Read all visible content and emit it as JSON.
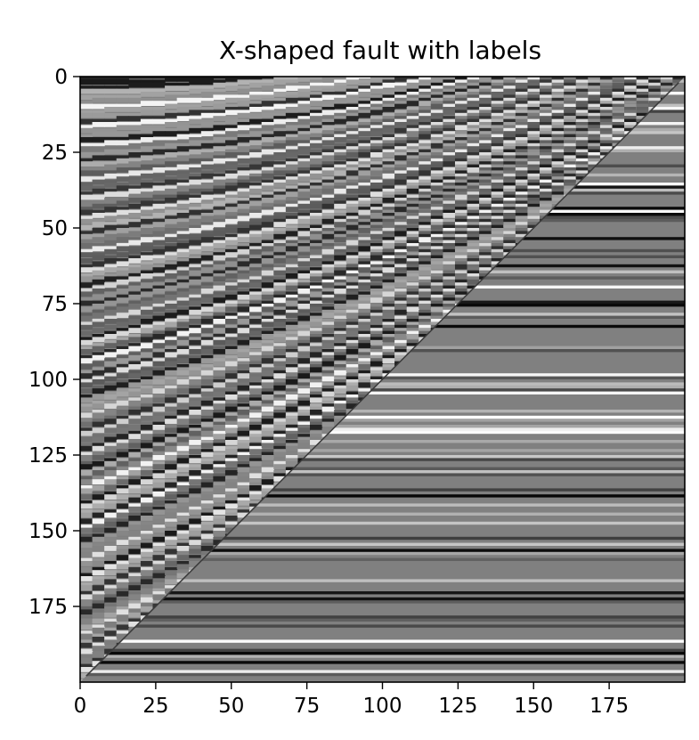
{
  "chart_data": {
    "type": "heatmap",
    "title": "X-shaped fault with labels",
    "xlabel": "",
    "ylabel": "",
    "colormap": "gray",
    "image_shape": [
      200,
      200
    ],
    "xlim": [
      0,
      200
    ],
    "ylim": [
      200,
      0
    ],
    "x_ticks": [
      0,
      25,
      50,
      75,
      100,
      125,
      150,
      175
    ],
    "y_ticks": [
      0,
      25,
      50,
      75,
      100,
      125,
      150,
      175
    ],
    "x_tick_labels": [
      "0",
      "25",
      "50",
      "75",
      "100",
      "125",
      "150",
      "175"
    ],
    "y_tick_labels": [
      "0",
      "25",
      "50",
      "75",
      "100",
      "125",
      "150",
      "175"
    ],
    "grid": false,
    "regions": [
      {
        "name": "curved-reflectors",
        "boundary": "left of fault",
        "layer_dip": "curving upward toward the fault"
      },
      {
        "name": "flat-layers",
        "boundary": "right of fault",
        "layer_dip": "horizontal"
      }
    ],
    "fault_line": {
      "x": [
        2,
        198
      ],
      "y": [
        198,
        2
      ]
    }
  }
}
